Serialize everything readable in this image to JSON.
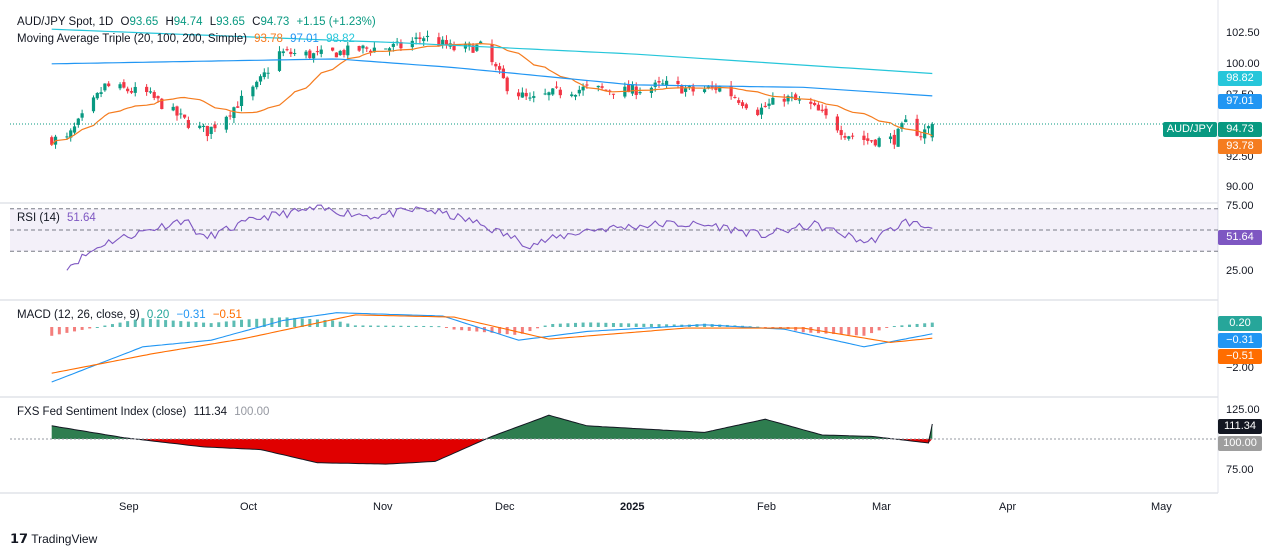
{
  "header": {
    "symbol": "AUD/JPY Spot, 1D",
    "open_label": "O",
    "open": "93.65",
    "high_label": "H",
    "high": "94.74",
    "low_label": "L",
    "low": "93.65",
    "close_label": "C",
    "close": "94.73",
    "change": "+1.15 (+1.23%)",
    "ma_label": "Moving Average Triple (20, 100, 200, Simple)",
    "ma20": "93.78",
    "ma100": "97.01",
    "ma200": "98.82"
  },
  "rsi_legend": {
    "label": "RSI (14)",
    "value": "51.64"
  },
  "macd_legend": {
    "label": "MACD (12, 26, close, 9)",
    "hist": "0.20",
    "macd": "−0.31",
    "signal": "−0.51"
  },
  "fxs_legend": {
    "label": "FXS Fed Sentiment Index (close)",
    "value": "111.34",
    "base": "100.00"
  },
  "price_axis": [
    "102.50",
    "100.00",
    "97.50",
    "92.50",
    "90.00"
  ],
  "rsi_axis": [
    "75.00",
    "25.00"
  ],
  "macd_axis": [
    "−2.00"
  ],
  "fxs_axis": [
    "125.00",
    "75.00"
  ],
  "tags": {
    "ma200": "98.82",
    "ma100": "97.01",
    "symbol": "AUD/JPY",
    "price": "94.73",
    "ma20": "93.78",
    "rsi": "51.64",
    "hist": "0.20",
    "macd": "−0.31",
    "signal": "−0.51",
    "fxs": "111.34",
    "fxs_base": "100.00"
  },
  "months": [
    "Sep",
    "Oct",
    "Nov",
    "Dec",
    "2025",
    "Feb",
    "Mar",
    "Apr",
    "May"
  ],
  "brand": "TradingView",
  "colors": {
    "up": "#089981",
    "down": "#f23645",
    "ma20": "#f57c1f",
    "ma100": "#2196f3",
    "ma200": "#26c6da",
    "rsi": "#7e57c2",
    "macd": "#2196f3",
    "signal": "#ff6d00",
    "fxs_up": "#2e7d4f",
    "fxs_down": "#e00000"
  },
  "chart_data": [
    {
      "type": "candlestick",
      "title": "AUD/JPY Spot, 1D",
      "ylim": [
        89.5,
        103.5
      ],
      "x_range": [
        "2024-08-01",
        "2025-05-20"
      ],
      "key_points": [
        {
          "date": "2024-08-05",
          "close": 93.5
        },
        {
          "date": "2024-08-15",
          "close": 97.8
        },
        {
          "date": "2024-08-26",
          "close": 97.2
        },
        {
          "date": "2024-09-06",
          "close": 94.8
        },
        {
          "date": "2024-09-11",
          "close": 94.1
        },
        {
          "date": "2024-09-24",
          "close": 97.8
        },
        {
          "date": "2024-09-30",
          "close": 100.5
        },
        {
          "date": "2024-10-10",
          "close": 100.3
        },
        {
          "date": "2024-10-22",
          "close": 100.8
        },
        {
          "date": "2024-11-01",
          "close": 101.0
        },
        {
          "date": "2024-11-07",
          "close": 101.8
        },
        {
          "date": "2024-11-15",
          "close": 100.8
        },
        {
          "date": "2024-11-22",
          "close": 101.0
        },
        {
          "date": "2024-11-29",
          "close": 97.8
        },
        {
          "date": "2024-12-05",
          "close": 96.6
        },
        {
          "date": "2024-12-12",
          "close": 97.3
        },
        {
          "date": "2024-12-20",
          "close": 97.6
        },
        {
          "date": "2024-12-31",
          "close": 97.4
        },
        {
          "date": "2025-01-10",
          "close": 97.9
        },
        {
          "date": "2025-01-17",
          "close": 97.4
        },
        {
          "date": "2025-01-24",
          "close": 97.7
        },
        {
          "date": "2025-02-03",
          "close": 95.8
        },
        {
          "date": "2025-02-10",
          "close": 96.9
        },
        {
          "date": "2025-02-17",
          "close": 96.2
        },
        {
          "date": "2025-02-26",
          "close": 94.0
        },
        {
          "date": "2025-03-04",
          "close": 93.4
        },
        {
          "date": "2025-03-11",
          "close": 93.5
        },
        {
          "date": "2025-03-14",
          "close": 94.8
        },
        {
          "date": "2025-03-18",
          "close": 93.9
        },
        {
          "date": "2025-03-21",
          "close": 94.73
        }
      ],
      "moving_averages": [
        {
          "name": "MA 20",
          "last": 93.78
        },
        {
          "name": "MA 100",
          "last": 97.01
        },
        {
          "name": "MA 200",
          "last": 98.82
        }
      ]
    },
    {
      "type": "line",
      "title": "RSI (14)",
      "ylim": [
        0,
        100
      ],
      "bands": [
        30,
        50,
        70
      ],
      "series": [
        {
          "name": "RSI (14)",
          "x": [
            "2024-08-05",
            "2024-08-15",
            "2024-09-05",
            "2024-09-10",
            "2024-09-25",
            "2024-10-10",
            "2024-10-25",
            "2024-11-07",
            "2024-11-20",
            "2024-12-05",
            "2024-12-20",
            "2025-01-10",
            "2025-01-23",
            "2025-02-04",
            "2025-02-18",
            "2025-03-04",
            "2025-03-14",
            "2025-03-21"
          ],
          "values": [
            15,
            38,
            60,
            42,
            62,
            70,
            63,
            70,
            58,
            36,
            50,
            56,
            54,
            45,
            55,
            38,
            58,
            51.64
          ]
        }
      ]
    },
    {
      "type": "line",
      "title": "MACD (12, 26, close, 9)",
      "series": [
        {
          "name": "MACD",
          "last": -0.31
        },
        {
          "name": "Signal",
          "last": -0.51
        },
        {
          "name": "Histogram",
          "last": 0.2
        }
      ]
    },
    {
      "type": "area",
      "title": "FXS Fed Sentiment Index (close)",
      "baseline": 100,
      "x": [
        "2024-08-01",
        "2024-08-20",
        "2024-09-10",
        "2024-09-25",
        "2024-10-10",
        "2024-10-28",
        "2024-11-10",
        "2024-11-25",
        "2024-12-10",
        "2024-12-20",
        "2025-01-20",
        "2025-02-05",
        "2025-02-20",
        "2025-03-05",
        "2025-03-20",
        "2025-03-21"
      ],
      "values": [
        110,
        101,
        94,
        92,
        82,
        81,
        83,
        102,
        118,
        110,
        105,
        115,
        103,
        102,
        97,
        111.34
      ]
    }
  ]
}
